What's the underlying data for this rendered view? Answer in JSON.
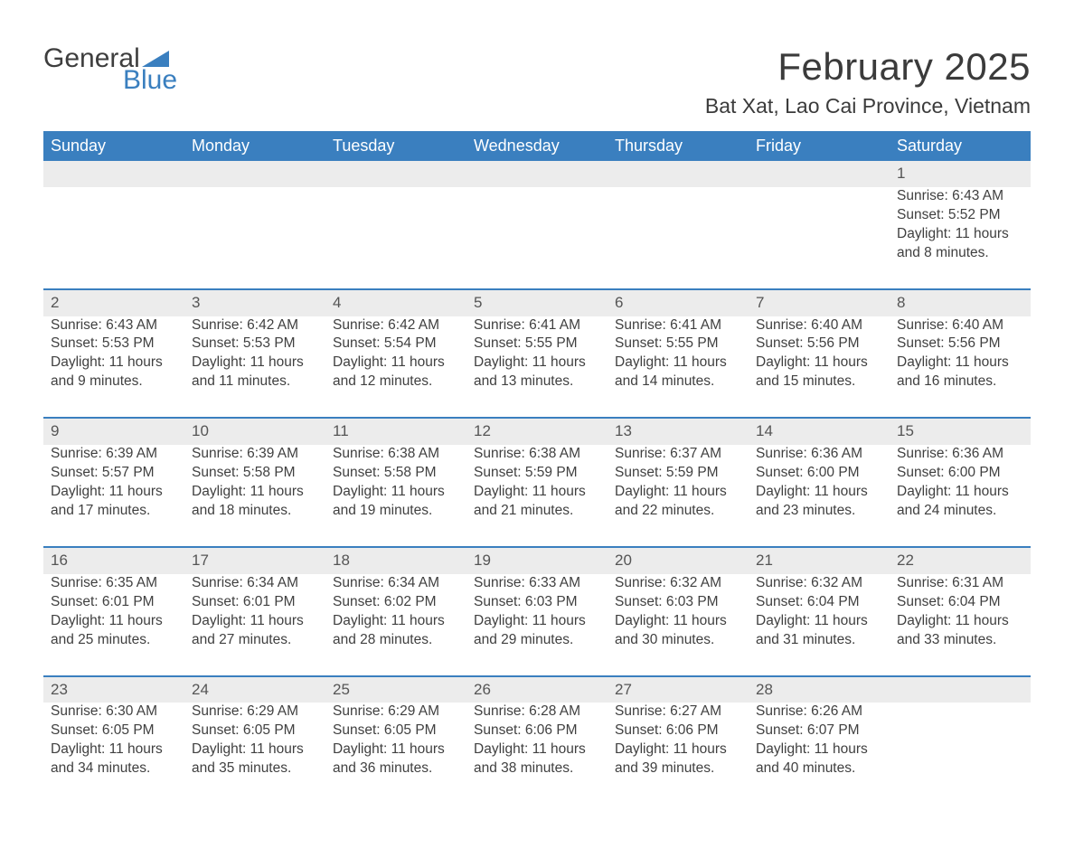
{
  "brand": {
    "word1": "General",
    "word2": "Blue",
    "accent_color": "#3a7fbf"
  },
  "title": "February 2025",
  "location": "Bat Xat, Lao Cai Province, Vietnam",
  "colors": {
    "header_bg": "#3a7fbf",
    "header_text": "#ffffff",
    "daynum_bg": "#ececec",
    "row_divider": "#3a7fbf",
    "body_text": "#404040",
    "page_bg": "#ffffff"
  },
  "typography": {
    "title_fontsize": 42,
    "location_fontsize": 23,
    "dayheader_fontsize": 18,
    "cell_fontsize": 15.5,
    "font_family": "Segoe UI"
  },
  "layout": {
    "columns": 7,
    "rows": 5,
    "first_day_column_index": 6
  },
  "day_headers": [
    "Sunday",
    "Monday",
    "Tuesday",
    "Wednesday",
    "Thursday",
    "Friday",
    "Saturday"
  ],
  "weeks": [
    [
      null,
      null,
      null,
      null,
      null,
      null,
      {
        "d": "1",
        "sr": "Sunrise: 6:43 AM",
        "ss": "Sunset: 5:52 PM",
        "dl": "Daylight: 11 hours and 8 minutes."
      }
    ],
    [
      {
        "d": "2",
        "sr": "Sunrise: 6:43 AM",
        "ss": "Sunset: 5:53 PM",
        "dl": "Daylight: 11 hours and 9 minutes."
      },
      {
        "d": "3",
        "sr": "Sunrise: 6:42 AM",
        "ss": "Sunset: 5:53 PM",
        "dl": "Daylight: 11 hours and 11 minutes."
      },
      {
        "d": "4",
        "sr": "Sunrise: 6:42 AM",
        "ss": "Sunset: 5:54 PM",
        "dl": "Daylight: 11 hours and 12 minutes."
      },
      {
        "d": "5",
        "sr": "Sunrise: 6:41 AM",
        "ss": "Sunset: 5:55 PM",
        "dl": "Daylight: 11 hours and 13 minutes."
      },
      {
        "d": "6",
        "sr": "Sunrise: 6:41 AM",
        "ss": "Sunset: 5:55 PM",
        "dl": "Daylight: 11 hours and 14 minutes."
      },
      {
        "d": "7",
        "sr": "Sunrise: 6:40 AM",
        "ss": "Sunset: 5:56 PM",
        "dl": "Daylight: 11 hours and 15 minutes."
      },
      {
        "d": "8",
        "sr": "Sunrise: 6:40 AM",
        "ss": "Sunset: 5:56 PM",
        "dl": "Daylight: 11 hours and 16 minutes."
      }
    ],
    [
      {
        "d": "9",
        "sr": "Sunrise: 6:39 AM",
        "ss": "Sunset: 5:57 PM",
        "dl": "Daylight: 11 hours and 17 minutes."
      },
      {
        "d": "10",
        "sr": "Sunrise: 6:39 AM",
        "ss": "Sunset: 5:58 PM",
        "dl": "Daylight: 11 hours and 18 minutes."
      },
      {
        "d": "11",
        "sr": "Sunrise: 6:38 AM",
        "ss": "Sunset: 5:58 PM",
        "dl": "Daylight: 11 hours and 19 minutes."
      },
      {
        "d": "12",
        "sr": "Sunrise: 6:38 AM",
        "ss": "Sunset: 5:59 PM",
        "dl": "Daylight: 11 hours and 21 minutes."
      },
      {
        "d": "13",
        "sr": "Sunrise: 6:37 AM",
        "ss": "Sunset: 5:59 PM",
        "dl": "Daylight: 11 hours and 22 minutes."
      },
      {
        "d": "14",
        "sr": "Sunrise: 6:36 AM",
        "ss": "Sunset: 6:00 PM",
        "dl": "Daylight: 11 hours and 23 minutes."
      },
      {
        "d": "15",
        "sr": "Sunrise: 6:36 AM",
        "ss": "Sunset: 6:00 PM",
        "dl": "Daylight: 11 hours and 24 minutes."
      }
    ],
    [
      {
        "d": "16",
        "sr": "Sunrise: 6:35 AM",
        "ss": "Sunset: 6:01 PM",
        "dl": "Daylight: 11 hours and 25 minutes."
      },
      {
        "d": "17",
        "sr": "Sunrise: 6:34 AM",
        "ss": "Sunset: 6:01 PM",
        "dl": "Daylight: 11 hours and 27 minutes."
      },
      {
        "d": "18",
        "sr": "Sunrise: 6:34 AM",
        "ss": "Sunset: 6:02 PM",
        "dl": "Daylight: 11 hours and 28 minutes."
      },
      {
        "d": "19",
        "sr": "Sunrise: 6:33 AM",
        "ss": "Sunset: 6:03 PM",
        "dl": "Daylight: 11 hours and 29 minutes."
      },
      {
        "d": "20",
        "sr": "Sunrise: 6:32 AM",
        "ss": "Sunset: 6:03 PM",
        "dl": "Daylight: 11 hours and 30 minutes."
      },
      {
        "d": "21",
        "sr": "Sunrise: 6:32 AM",
        "ss": "Sunset: 6:04 PM",
        "dl": "Daylight: 11 hours and 31 minutes."
      },
      {
        "d": "22",
        "sr": "Sunrise: 6:31 AM",
        "ss": "Sunset: 6:04 PM",
        "dl": "Daylight: 11 hours and 33 minutes."
      }
    ],
    [
      {
        "d": "23",
        "sr": "Sunrise: 6:30 AM",
        "ss": "Sunset: 6:05 PM",
        "dl": "Daylight: 11 hours and 34 minutes."
      },
      {
        "d": "24",
        "sr": "Sunrise: 6:29 AM",
        "ss": "Sunset: 6:05 PM",
        "dl": "Daylight: 11 hours and 35 minutes."
      },
      {
        "d": "25",
        "sr": "Sunrise: 6:29 AM",
        "ss": "Sunset: 6:05 PM",
        "dl": "Daylight: 11 hours and 36 minutes."
      },
      {
        "d": "26",
        "sr": "Sunrise: 6:28 AM",
        "ss": "Sunset: 6:06 PM",
        "dl": "Daylight: 11 hours and 38 minutes."
      },
      {
        "d": "27",
        "sr": "Sunrise: 6:27 AM",
        "ss": "Sunset: 6:06 PM",
        "dl": "Daylight: 11 hours and 39 minutes."
      },
      {
        "d": "28",
        "sr": "Sunrise: 6:26 AM",
        "ss": "Sunset: 6:07 PM",
        "dl": "Daylight: 11 hours and 40 minutes."
      },
      null
    ]
  ]
}
